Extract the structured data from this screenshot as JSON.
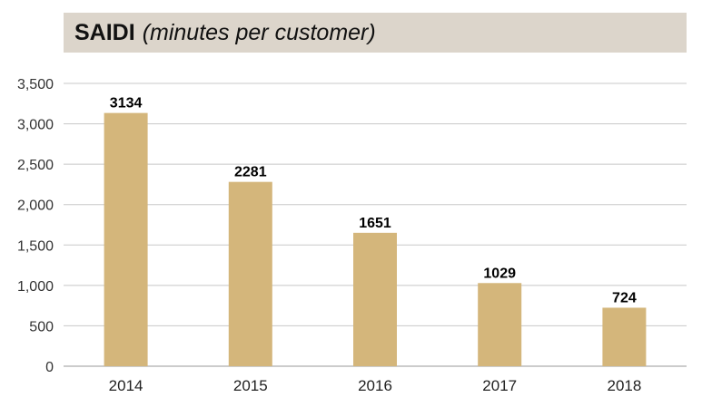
{
  "colors": {
    "bar": "#d4b67b",
    "title_bg": "#dcd5cb",
    "grid": "#c8c8c8"
  },
  "chart_data": {
    "type": "bar",
    "title": "SAIDI",
    "subtitle": "(minutes per customer)",
    "categories": [
      "2014",
      "2015",
      "2016",
      "2017",
      "2018"
    ],
    "values": [
      3134,
      2281,
      1651,
      1029,
      724
    ],
    "data_labels": [
      "3134",
      "2281",
      "1651",
      "1029",
      "724"
    ],
    "xlabel": "",
    "ylabel": "",
    "ylim": [
      0,
      3500
    ],
    "yticks": [
      0,
      500,
      1000,
      1500,
      2000,
      2500,
      3000,
      3500
    ],
    "ytick_labels": [
      "0",
      "500",
      "1,000",
      "1,500",
      "2,000",
      "2,500",
      "3,000",
      "3,500"
    ],
    "grid": true,
    "legend": "none"
  }
}
